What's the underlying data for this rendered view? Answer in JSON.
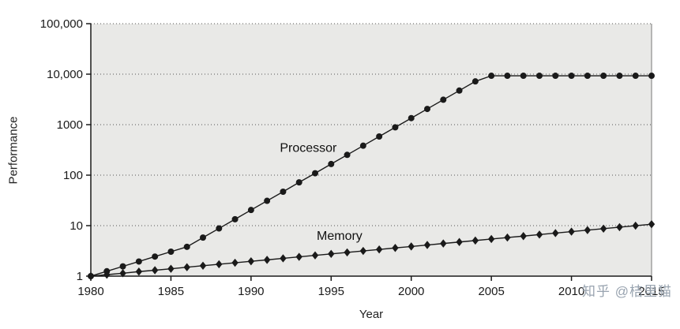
{
  "page": {
    "watermark": "知乎 @桔里猫",
    "watermark_color": "#98a3af",
    "background": "#ffffff"
  },
  "chart_data": {
    "type": "line",
    "title": "",
    "xlabel": "Year",
    "ylabel": "Performance",
    "y_scale": "log",
    "xlim": [
      1980,
      2015
    ],
    "ylim": [
      1,
      100000
    ],
    "grid": "horizontal-dotted",
    "plot_bg": "#e9e9e7",
    "axis_color": "#1a1a1a",
    "x_ticks": [
      1980,
      1985,
      1990,
      1995,
      2000,
      2005,
      2010,
      2015
    ],
    "y_ticks": [
      1,
      10,
      100,
      1000,
      10000,
      100000
    ],
    "y_tick_labels": [
      "1",
      "10",
      "100",
      "1000",
      "10,000",
      "100,000"
    ],
    "x": [
      1980,
      1981,
      1982,
      1983,
      1984,
      1985,
      1986,
      1987,
      1988,
      1989,
      1990,
      1991,
      1992,
      1993,
      1994,
      1995,
      1996,
      1997,
      1998,
      1999,
      2000,
      2001,
      2002,
      2003,
      2004,
      2005,
      2006,
      2007,
      2008,
      2009,
      2010,
      2011,
      2012,
      2013,
      2014,
      2015
    ],
    "series": [
      {
        "name": "Processor",
        "marker": "circle",
        "color": "#1a1a1a",
        "label_pos": {
          "year": 1991.8,
          "value": 290
        },
        "values": [
          1,
          1.25,
          1.56,
          1.95,
          2.44,
          3.05,
          3.81,
          5.8,
          8.8,
          13.4,
          20.4,
          31,
          47,
          72,
          109,
          166,
          252,
          383,
          583,
          886,
          1347,
          2048,
          3113,
          4732,
          7193,
          9300,
          9300,
          9300,
          9300,
          9300,
          9300,
          9300,
          9300,
          9300,
          9300,
          9300
        ]
      },
      {
        "name": "Memory",
        "marker": "diamond",
        "color": "#1a1a1a",
        "label_pos": {
          "year": 1994.1,
          "value": 5.2
        },
        "values": [
          1,
          1.07,
          1.14,
          1.23,
          1.31,
          1.4,
          1.5,
          1.61,
          1.72,
          1.84,
          1.97,
          2.1,
          2.25,
          2.41,
          2.58,
          2.76,
          2.95,
          3.16,
          3.38,
          3.62,
          3.87,
          4.14,
          4.43,
          4.74,
          5.07,
          5.43,
          5.81,
          6.21,
          6.65,
          7.11,
          7.61,
          8.15,
          8.72,
          9.33,
          9.98,
          10.68
        ]
      }
    ]
  }
}
